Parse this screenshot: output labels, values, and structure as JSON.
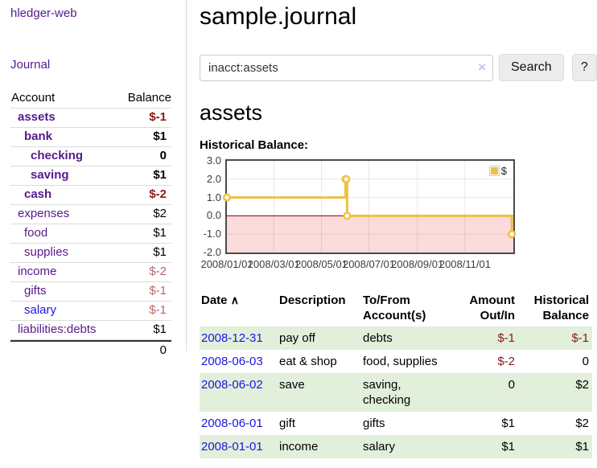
{
  "colors": {
    "purple": "#551a8b",
    "blue": "#1a16e0",
    "neg": "#8b1717",
    "dimneg": "#b36a6a",
    "green": "#e2efdb",
    "gold": "#edc240"
  },
  "app": {
    "title": "hledger-web"
  },
  "nav": {
    "journal": "Journal"
  },
  "sidebar": {
    "header": {
      "account": "Account",
      "balance": "Balance"
    },
    "accounts": [
      {
        "name": "assets",
        "depth": 1,
        "bold": true,
        "link": "purple",
        "balance": "$-1",
        "balance_class": "neg"
      },
      {
        "name": "bank",
        "depth": 2,
        "bold": true,
        "link": "purple",
        "balance": "$1",
        "balance_class": ""
      },
      {
        "name": "checking",
        "depth": 3,
        "bold": true,
        "link": "purple",
        "balance": "0",
        "balance_class": ""
      },
      {
        "name": "saving",
        "depth": 3,
        "bold": true,
        "link": "purple",
        "balance": "$1",
        "balance_class": ""
      },
      {
        "name": "cash",
        "depth": 2,
        "bold": true,
        "link": "purple",
        "balance": "$-2",
        "balance_class": "neg"
      },
      {
        "name": "expenses",
        "depth": 1,
        "bold": false,
        "link": "purple",
        "balance": "$2",
        "balance_class": ""
      },
      {
        "name": "food",
        "depth": 2,
        "bold": false,
        "link": "purple",
        "balance": "$1",
        "balance_class": ""
      },
      {
        "name": "supplies",
        "depth": 2,
        "bold": false,
        "link": "purple",
        "balance": "$1",
        "balance_class": ""
      },
      {
        "name": "income",
        "depth": 1,
        "bold": false,
        "link": "purple",
        "balance": "$-2",
        "balance_class": "dimneg"
      },
      {
        "name": "gifts",
        "depth": 2,
        "bold": false,
        "link": "purple",
        "balance": "$-1",
        "balance_class": "dimneg"
      },
      {
        "name": "salary",
        "depth": 2,
        "bold": false,
        "link": "blue",
        "balance": "$-1",
        "balance_class": "dimneg"
      },
      {
        "name": "liabilities:debts",
        "depth": 1,
        "bold": false,
        "link": "purple",
        "balance": "$1",
        "balance_class": ""
      }
    ],
    "total": "0"
  },
  "header": {
    "title": "sample.journal"
  },
  "search": {
    "value": "inacct:assets",
    "clear_icon": "×",
    "button": "Search",
    "help_button": "?"
  },
  "main": {
    "account_title": "assets",
    "chart_label": "Historical Balance:"
  },
  "chart_data": {
    "type": "line",
    "title": "Historical Balance",
    "x_unit": "days since 2008-01-01",
    "xlim": [
      0,
      367
    ],
    "ylim": [
      -2,
      3
    ],
    "y_ticks": [
      3,
      2,
      1,
      0,
      -1,
      -2
    ],
    "x_ticks": [
      {
        "x": 0,
        "label": "2008/01/01"
      },
      {
        "x": 60,
        "label": "2008/03/01"
      },
      {
        "x": 121,
        "label": "2008/05/01"
      },
      {
        "x": 182,
        "label": "2008/07/01"
      },
      {
        "x": 244,
        "label": "2008/09/01"
      },
      {
        "x": 305,
        "label": "2008/11/01"
      }
    ],
    "series": [
      {
        "name": "$",
        "color": "#edc240",
        "steps": true,
        "points": [
          {
            "x": 0,
            "y": 1,
            "date": "2008-01-01"
          },
          {
            "x": 152,
            "y": 2,
            "date": "2008-06-01"
          },
          {
            "x": 153,
            "y": 2,
            "date": "2008-06-02"
          },
          {
            "x": 154,
            "y": 0,
            "date": "2008-06-03"
          },
          {
            "x": 365,
            "y": -1,
            "date": "2008-12-31"
          }
        ]
      }
    ],
    "negative_region_color": "#fbdbdb",
    "zero_line_color": "#8b0000",
    "grid": true,
    "legend": {
      "label": "$",
      "position": "top-right"
    }
  },
  "register": {
    "columns": [
      "Date",
      "Description",
      "To/From Account(s)",
      "Amount Out/In",
      "Historical Balance"
    ],
    "sort_icon": "∧",
    "rows": [
      {
        "date": "2008-12-31",
        "description": "pay off",
        "accounts": "debts",
        "amount": "$-1",
        "amount_neg": true,
        "balance": "$-1",
        "balance_neg": true,
        "highlight": true
      },
      {
        "date": "2008-06-03",
        "description": "eat & shop",
        "accounts": "food, supplies",
        "amount": "$-2",
        "amount_neg": true,
        "balance": "0",
        "balance_neg": false,
        "highlight": false
      },
      {
        "date": "2008-06-02",
        "description": "save",
        "accounts": "saving, checking",
        "amount": "0",
        "amount_neg": false,
        "balance": "$2",
        "balance_neg": false,
        "highlight": true
      },
      {
        "date": "2008-06-01",
        "description": "gift",
        "accounts": "gifts",
        "amount": "$1",
        "amount_neg": false,
        "balance": "$2",
        "balance_neg": false,
        "highlight": false
      },
      {
        "date": "2008-01-01",
        "description": "income",
        "accounts": "salary",
        "amount": "$1",
        "amount_neg": false,
        "balance": "$1",
        "balance_neg": false,
        "highlight": true
      }
    ]
  }
}
